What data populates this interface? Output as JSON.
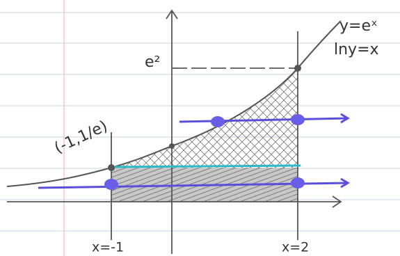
{
  "labels": {
    "curve": "y=eˣ",
    "inverse": "lny=x",
    "top_value": "e²",
    "point": "(-1,1/e)",
    "left_bound": "x=-1",
    "right_bound": "x=2"
  }
}
